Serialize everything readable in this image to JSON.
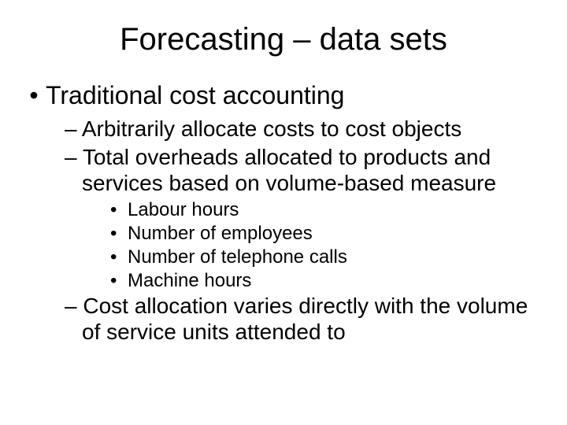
{
  "slide": {
    "title": "Forecasting – data sets",
    "level1": {
      "bullet": "•",
      "text": "Traditional cost accounting"
    },
    "level2": [
      {
        "dash": "–",
        "text": "Arbitrarily allocate costs to cost objects"
      },
      {
        "dash": "–",
        "text": "Total overheads allocated to products and services based on volume-based measure"
      },
      {
        "dash": "–",
        "text": "Cost allocation varies directly with the volume of service units attended to"
      }
    ],
    "level3": [
      {
        "bullet": "•",
        "text": "Labour hours"
      },
      {
        "bullet": "•",
        "text": "Number of employees"
      },
      {
        "bullet": "•",
        "text": "Number of telephone calls"
      },
      {
        "bullet": "•",
        "text": "Machine hours"
      }
    ],
    "colors": {
      "background": "#ffffff",
      "text": "#000000"
    },
    "typography": {
      "font_family": "Arial",
      "title_fontsize": 40,
      "lvl1_fontsize": 32,
      "lvl2_fontsize": 28,
      "lvl3_fontsize": 24
    }
  }
}
